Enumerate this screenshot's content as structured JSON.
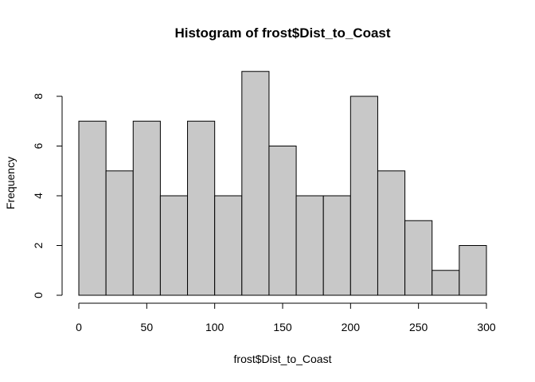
{
  "chart_data": {
    "type": "bar",
    "title": "Histogram of frost$Dist_to_Coast",
    "xlabel": "frost$Dist_to_Coast",
    "ylabel": "Frequency",
    "bin_edges": [
      0,
      20,
      40,
      60,
      80,
      100,
      120,
      140,
      160,
      180,
      200,
      220,
      240,
      260,
      280,
      300
    ],
    "values": [
      7,
      5,
      7,
      4,
      7,
      4,
      9,
      6,
      4,
      4,
      8,
      5,
      3,
      1,
      2
    ],
    "xlim": [
      0,
      300
    ],
    "ylim": [
      0,
      9
    ],
    "x_ticks": [
      0,
      50,
      100,
      150,
      200,
      250,
      300
    ],
    "y_ticks": [
      0,
      2,
      4,
      6,
      8
    ],
    "bar_color": "#c8c8c8",
    "grid": false,
    "legend": "none"
  }
}
